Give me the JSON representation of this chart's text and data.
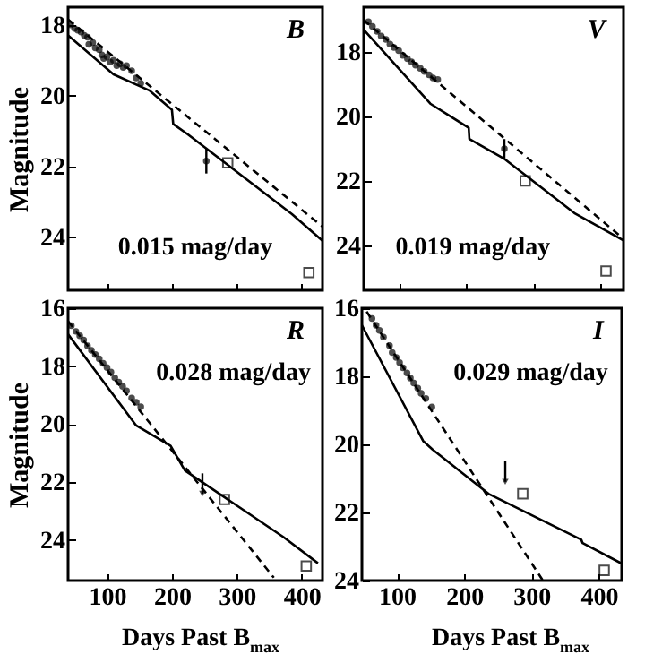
{
  "chart_data": [
    {
      "type": "line",
      "ylabel": "Magnitude",
      "annotations": [
        "B",
        "0.015 mag/day"
      ],
      "xlim": [
        40,
        432
      ],
      "xticks": [
        100,
        200,
        300,
        400
      ],
      "ylim": [
        25.5,
        17.5
      ],
      "yticks": [
        18,
        20,
        22,
        24
      ],
      "tick_labels": "y",
      "series": [
        {
          "color": "#000000",
          "line_style": "solid",
          "x": [
            40,
            110,
            165,
            200,
            202,
            225,
            385,
            432
          ],
          "values": [
            18.3,
            19.4,
            19.85,
            20.4,
            20.8,
            21.1,
            23.35,
            24.1
          ]
        },
        {
          "color": "#000000",
          "line_style": "dashed",
          "x": [
            40,
            432
          ],
          "values": [
            17.85,
            23.7
          ]
        },
        {
          "type": "scatter",
          "marker": "circle",
          "color": "#000000",
          "x": [
            44,
            50,
            55,
            60,
            65,
            70,
            72,
            78,
            82,
            88,
            92,
            95,
            100,
            105,
            110,
            115,
            120,
            125,
            130,
            138,
            145,
            152
          ],
          "values": [
            18.0,
            18.1,
            18.15,
            18.2,
            18.3,
            18.35,
            18.55,
            18.5,
            18.65,
            18.7,
            18.85,
            18.95,
            18.9,
            19.05,
            19.0,
            19.15,
            19.1,
            19.2,
            19.15,
            19.3,
            19.5,
            19.65
          ]
        },
        {
          "type": "scatter",
          "marker": "circle",
          "color": "#000000",
          "x": [
            253
          ],
          "values": [
            21.85
          ],
          "errors": [
            0.35
          ]
        },
        {
          "type": "scatter",
          "marker": "square",
          "color": "#000000",
          "x": [
            286,
            411
          ],
          "values": [
            21.9,
            25.0
          ]
        }
      ]
    },
    {
      "type": "line",
      "annotations": [
        "V",
        "0.019 mag/day"
      ],
      "xlim": [
        48,
        434
      ],
      "xticks": [
        100,
        200,
        300,
        400
      ],
      "ylim": [
        25.4,
        16.6
      ],
      "yticks": [
        18,
        20,
        22,
        24
      ],
      "tick_labels": "y",
      "series": [
        {
          "color": "#000000",
          "line_style": "solid",
          "x": [
            48,
            147,
            204,
            205,
            256,
            361,
            434
          ],
          "values": [
            17.3,
            19.6,
            20.35,
            20.7,
            21.3,
            23.0,
            23.85
          ]
        },
        {
          "color": "#000000",
          "line_style": "dashed",
          "x": [
            48,
            434
          ],
          "values": [
            17.0,
            23.8
          ]
        },
        {
          "type": "scatter",
          "marker": "circle",
          "color": "#000000",
          "x": [
            55,
            61,
            68,
            74,
            81,
            87,
            93,
            100,
            106,
            113,
            119,
            125,
            132,
            138,
            145,
            151,
            158
          ],
          "values": [
            17.05,
            17.2,
            17.35,
            17.5,
            17.6,
            17.75,
            17.85,
            17.95,
            18.1,
            18.2,
            18.3,
            18.4,
            18.5,
            18.6,
            18.7,
            18.8,
            18.85
          ]
        },
        {
          "type": "scatter",
          "marker": "circle",
          "color": "#000000",
          "x": [
            257
          ],
          "values": [
            21.0
          ],
          "errors": [
            0.3
          ]
        },
        {
          "type": "scatter",
          "marker": "square",
          "color": "#000000",
          "x": [
            288,
            408
          ],
          "values": [
            22.0,
            24.8
          ]
        }
      ]
    },
    {
      "type": "line",
      "xlabel": "Days Past B$_{max}$",
      "ylabel": "Magnitude",
      "annotations": [
        "R",
        "0.028 mag/day"
      ],
      "xlim": [
        40,
        432
      ],
      "xticks": [
        100,
        200,
        300,
        400
      ],
      "ylim": [
        25.4,
        16
      ],
      "yticks": [
        16,
        18,
        20,
        22,
        24
      ],
      "series": [
        {
          "color": "#000000",
          "line_style": "solid",
          "x": [
            40,
            145,
            198,
            220,
            372,
            425
          ],
          "values": [
            16.9,
            20.05,
            20.75,
            21.6,
            23.9,
            24.8
          ]
        },
        {
          "color": "#000000",
          "line_style": "dashed",
          "x": [
            40,
            357
          ],
          "values": [
            16.45,
            25.3
          ]
        },
        {
          "type": "scatter",
          "marker": "circle",
          "color": "#000000",
          "x": [
            45,
            52,
            58,
            64,
            70,
            76,
            82,
            88,
            94,
            100,
            106,
            112,
            118,
            124,
            130,
            138,
            145,
            152
          ],
          "values": [
            16.6,
            16.8,
            16.95,
            17.1,
            17.3,
            17.45,
            17.6,
            17.75,
            17.9,
            18.05,
            18.2,
            18.4,
            18.55,
            18.7,
            18.85,
            19.1,
            19.25,
            19.4
          ]
        },
        {
          "type": "scatter",
          "marker": "triangle",
          "color": "#000000",
          "x": [
            247
          ],
          "values": [
            22.4
          ],
          "errors": [
            [
              21.7,
              22.4
            ]
          ]
        },
        {
          "type": "scatter",
          "marker": "square",
          "color": "#000000",
          "x": [
            281,
            407
          ],
          "values": [
            22.6,
            24.9
          ]
        }
      ]
    },
    {
      "type": "line",
      "xlabel": "Days Past B$_{max}$",
      "annotations": [
        "I",
        "0.029 mag/day"
      ],
      "xlim": [
        48,
        434
      ],
      "xticks": [
        100,
        200,
        300,
        400
      ],
      "ylim": [
        24,
        16
      ],
      "yticks": [
        16,
        18,
        20,
        22,
        24
      ],
      "series": [
        {
          "color": "#000000",
          "line_style": "solid",
          "x": [
            48,
            139,
            153,
            236,
            374,
            376,
            434
          ],
          "values": [
            16.5,
            19.9,
            20.15,
            21.45,
            22.8,
            22.9,
            23.5
          ]
        },
        {
          "color": "#000000",
          "line_style": "dashed",
          "x": [
            55,
            317
          ],
          "values": [
            16.1,
            24.0
          ]
        },
        {
          "type": "scatter",
          "marker": "circle",
          "color": "#000000",
          "x": [
            63,
            69,
            74,
            80,
            89,
            93,
            99,
            104,
            109,
            115,
            120,
            125,
            131,
            136,
            143,
            152
          ],
          "values": [
            16.3,
            16.5,
            16.65,
            16.85,
            17.1,
            17.3,
            17.45,
            17.6,
            17.75,
            17.9,
            18.05,
            18.2,
            18.35,
            18.5,
            18.65,
            18.9
          ]
        },
        {
          "type": "scatter",
          "marker": "triangle",
          "color": "#000000",
          "x": [
            261
          ],
          "values": [
            21.1
          ],
          "errors": [
            [
              20.5,
              21.1
            ]
          ]
        },
        {
          "type": "scatter",
          "marker": "square",
          "color": "#000000",
          "x": [
            287,
            408
          ],
          "values": [
            21.45,
            23.7
          ]
        }
      ]
    }
  ]
}
